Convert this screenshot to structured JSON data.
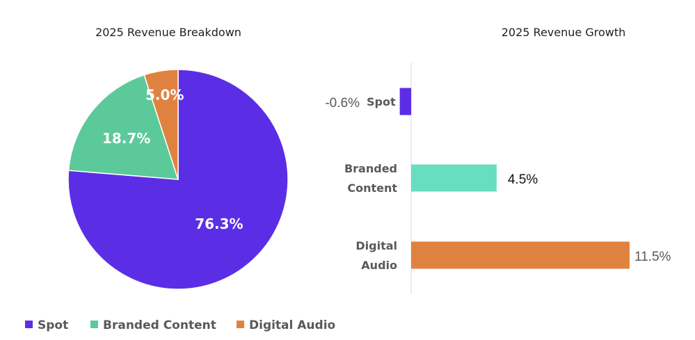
{
  "chart_data": [
    {
      "type": "pie",
      "title": "2025 Revenue Breakdown",
      "categories": [
        "Spot",
        "Branded Content",
        "Digital Audio"
      ],
      "values": [
        76.3,
        18.7,
        5.0
      ],
      "labels": [
        "76.3%",
        "18.7%",
        "5.0%"
      ],
      "colors": [
        "#5B2EE6",
        "#5CC99A",
        "#E0823F"
      ],
      "legend": {
        "placement": "bottom",
        "entries": [
          "Spot",
          "Branded Content",
          "Digital Audio"
        ]
      }
    },
    {
      "type": "bar",
      "orientation": "horizontal",
      "title": "2025 Revenue Growth",
      "categories": [
        "Spot",
        "Branded Content",
        "Digital Audio"
      ],
      "category_lines": [
        [
          "Spot"
        ],
        [
          "Branded",
          "Content"
        ],
        [
          "Digital",
          "Audio"
        ]
      ],
      "values": [
        -0.6,
        4.5,
        11.5
      ],
      "labels": [
        "-0.6%",
        "4.5%",
        "11.5%"
      ],
      "colors": [
        "#5B2EE6",
        "#68DDC0",
        "#E0823F"
      ],
      "label_colors": [
        "#595959",
        "#111111",
        "#595959"
      ],
      "grid": false
    }
  ]
}
